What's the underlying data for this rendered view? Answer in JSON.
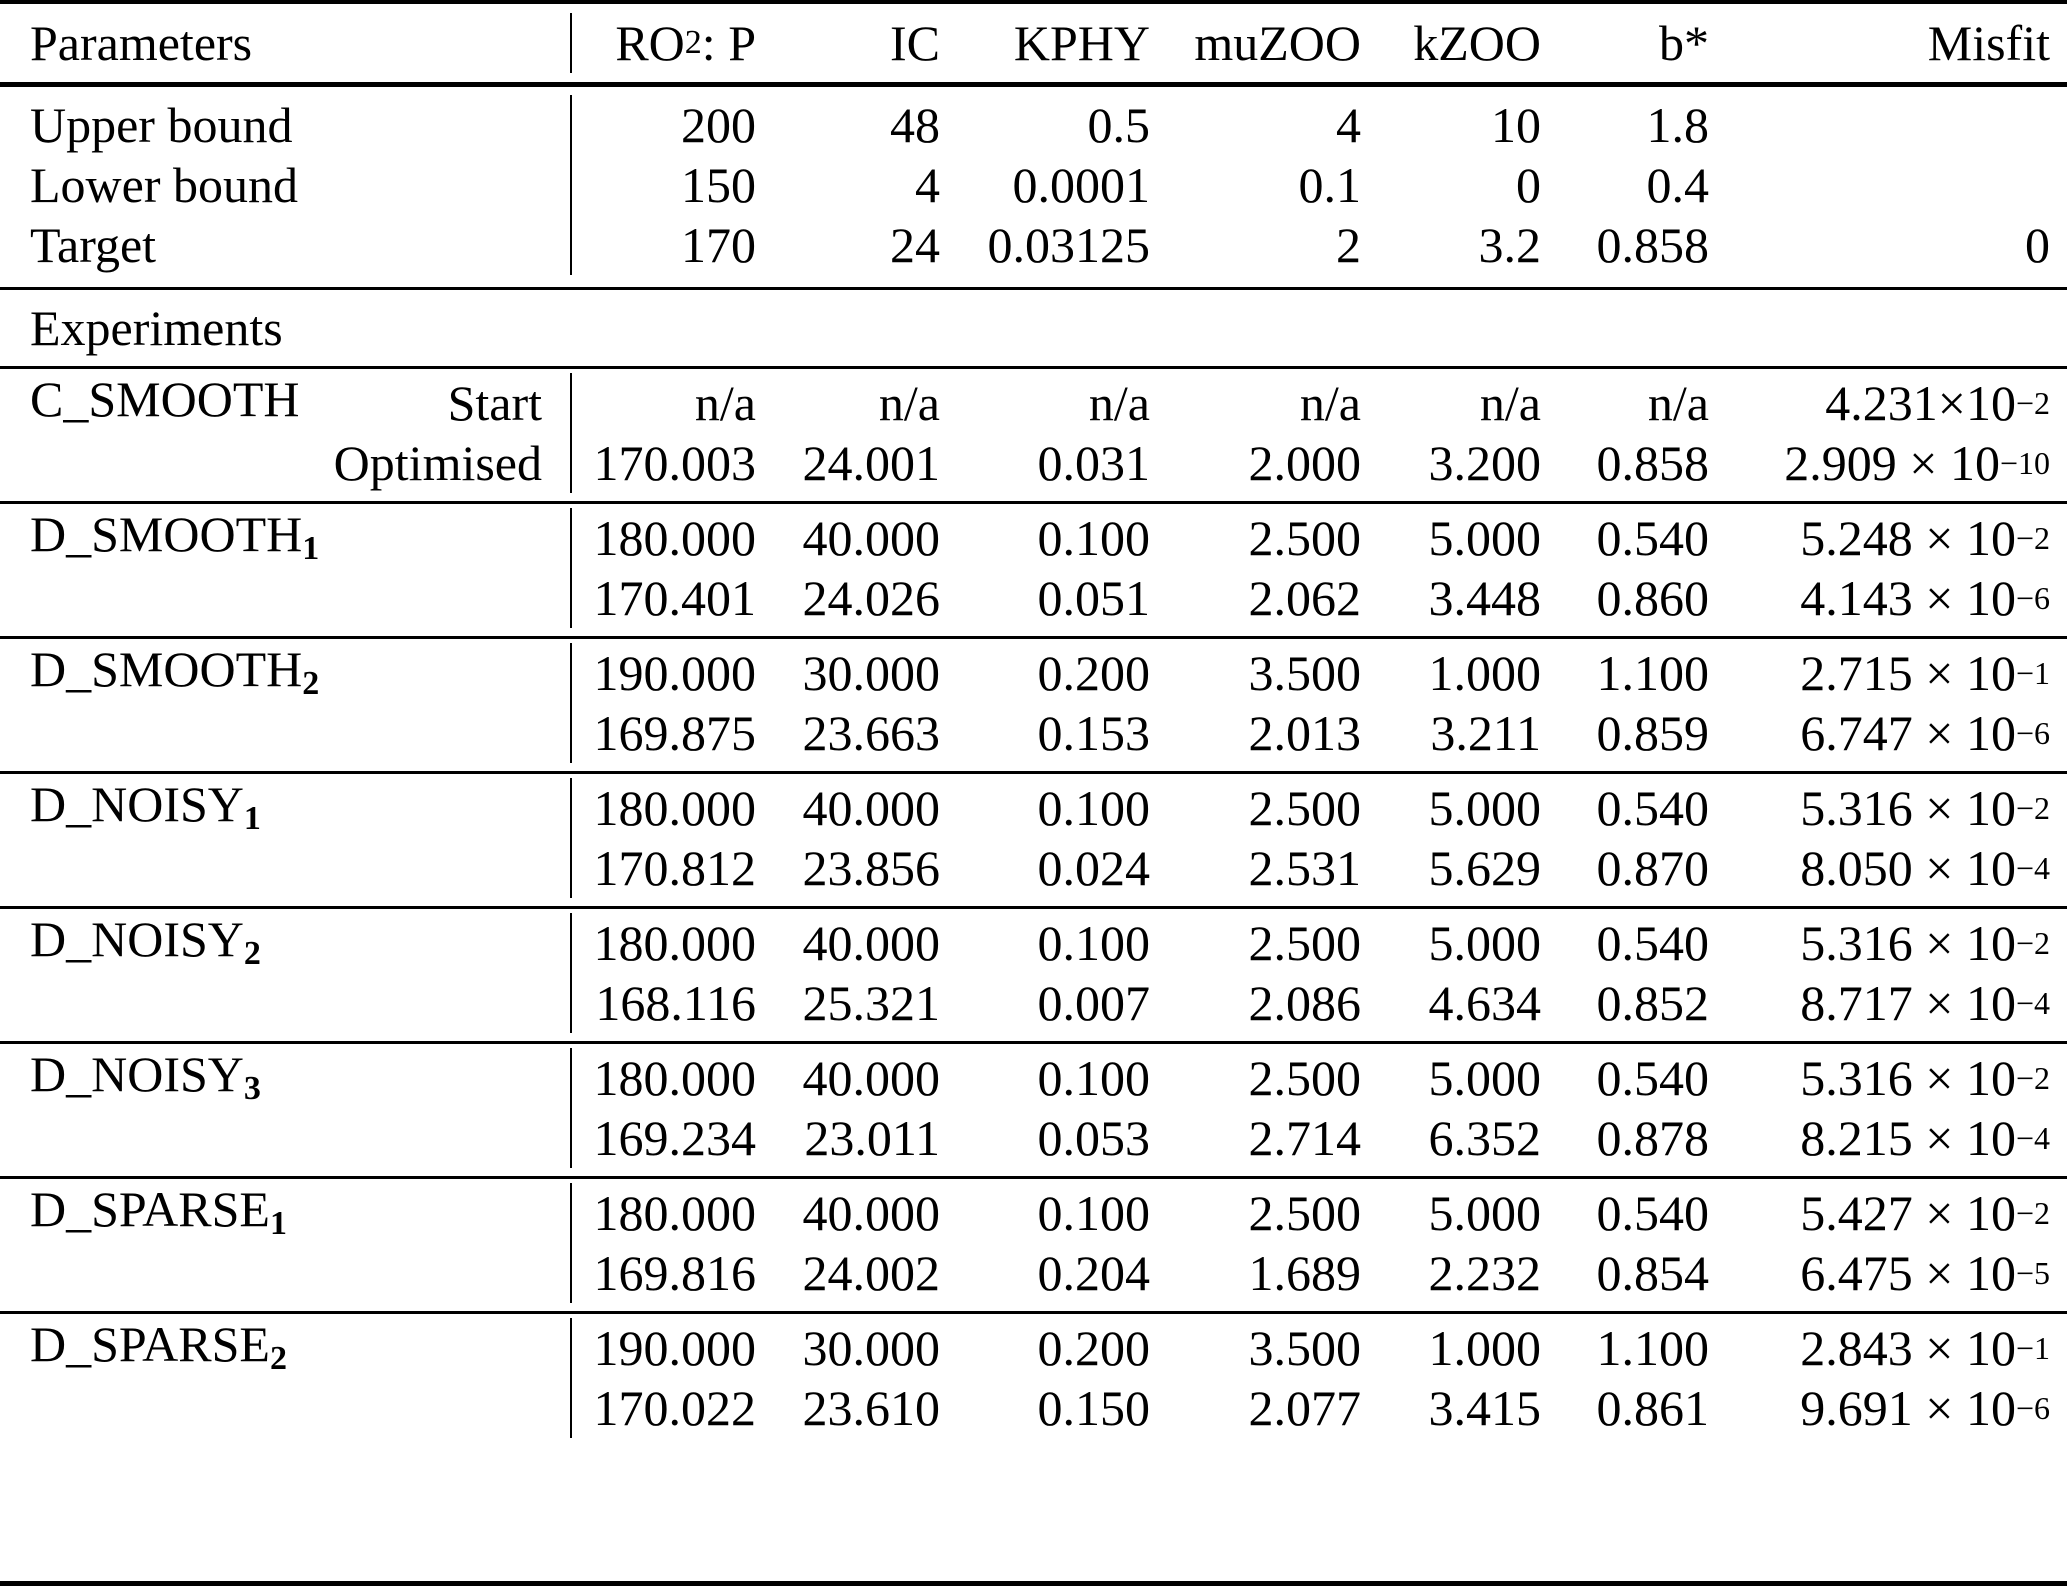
{
  "header": {
    "parameters_label": "Parameters",
    "ro2p": {
      "pre": "RO",
      "sub": "2",
      "post": " : P"
    },
    "cols": [
      "IC",
      "KPHY",
      "muZOO",
      "kZOO",
      "b*",
      "Misfit"
    ]
  },
  "bounds": {
    "rows": [
      {
        "label": "Upper bound",
        "values": [
          "200",
          "48",
          "0.5",
          "4",
          "10",
          "1.8"
        ],
        "misfit": ""
      },
      {
        "label": "Lower bound",
        "values": [
          "150",
          "4",
          "0.0001",
          "0.1",
          "0",
          "0.4"
        ],
        "misfit": ""
      },
      {
        "label": "Target",
        "values": [
          "170",
          "24",
          "0.03125",
          "2",
          "3.2",
          "0.858"
        ],
        "misfit": "0"
      }
    ]
  },
  "experiments_label": "Experiments",
  "experiments": [
    {
      "name": "C_SMOOTH",
      "sub": "",
      "row_labels": [
        "Start",
        "Optimised"
      ],
      "rows": [
        {
          "values": [
            "n/a",
            "n/a",
            "n/a",
            "n/a",
            "n/a",
            "n/a"
          ],
          "misfit_base": "4.231×10",
          "misfit_exp": "−2"
        },
        {
          "values": [
            "170.003",
            "24.001",
            "0.031",
            "2.000",
            "3.200",
            "0.858"
          ],
          "misfit_base": "2.909 × 10",
          "misfit_exp": "−10"
        }
      ]
    },
    {
      "name": "D_SMOOTH",
      "sub": "1",
      "rows": [
        {
          "values": [
            "180.000",
            "40.000",
            "0.100",
            "2.500",
            "5.000",
            "0.540"
          ],
          "misfit_base": "5.248 × 10",
          "misfit_exp": "−2"
        },
        {
          "values": [
            "170.401",
            "24.026",
            "0.051",
            "2.062",
            "3.448",
            "0.860"
          ],
          "misfit_base": "4.143 × 10",
          "misfit_exp": "−6"
        }
      ]
    },
    {
      "name": "D_SMOOTH",
      "sub": "2",
      "rows": [
        {
          "values": [
            "190.000",
            "30.000",
            "0.200",
            "3.500",
            "1.000",
            "1.100"
          ],
          "misfit_base": "2.715 × 10",
          "misfit_exp": "−1"
        },
        {
          "values": [
            "169.875",
            "23.663",
            "0.153",
            "2.013",
            "3.211",
            "0.859"
          ],
          "misfit_base": "6.747 × 10",
          "misfit_exp": "−6"
        }
      ]
    },
    {
      "name": "D_NOISY",
      "sub": "1",
      "rows": [
        {
          "values": [
            "180.000",
            "40.000",
            "0.100",
            "2.500",
            "5.000",
            "0.540"
          ],
          "misfit_base": "5.316 × 10",
          "misfit_exp": "−2"
        },
        {
          "values": [
            "170.812",
            "23.856",
            "0.024",
            "2.531",
            "5.629",
            "0.870"
          ],
          "misfit_base": "8.050 × 10",
          "misfit_exp": "−4"
        }
      ]
    },
    {
      "name": "D_NOISY",
      "sub": "2",
      "rows": [
        {
          "values": [
            "180.000",
            "40.000",
            "0.100",
            "2.500",
            "5.000",
            "0.540"
          ],
          "misfit_base": "5.316 × 10",
          "misfit_exp": "−2"
        },
        {
          "values": [
            "168.116",
            "25.321",
            "0.007",
            "2.086",
            "4.634",
            "0.852"
          ],
          "misfit_base": "8.717 × 10",
          "misfit_exp": "−4"
        }
      ]
    },
    {
      "name": "D_NOISY",
      "sub": "3",
      "rows": [
        {
          "values": [
            "180.000",
            "40.000",
            "0.100",
            "2.500",
            "5.000",
            "0.540"
          ],
          "misfit_base": "5.316 × 10",
          "misfit_exp": "−2"
        },
        {
          "values": [
            "169.234",
            "23.011",
            "0.053",
            "2.714",
            "6.352",
            "0.878"
          ],
          "misfit_base": "8.215 × 10",
          "misfit_exp": "−4"
        }
      ]
    },
    {
      "name": "D_SPARSE",
      "sub": "1",
      "rows": [
        {
          "values": [
            "180.000",
            "40.000",
            "0.100",
            "2.500",
            "5.000",
            "0.540"
          ],
          "misfit_base": "5.427 × 10",
          "misfit_exp": "−2"
        },
        {
          "values": [
            "169.816",
            "24.002",
            "0.204",
            "1.689",
            "2.232",
            "0.854"
          ],
          "misfit_base": "6.475 × 10",
          "misfit_exp": "−5"
        }
      ]
    },
    {
      "name": "D_SPARSE",
      "sub": "2",
      "rows": [
        {
          "values": [
            "190.000",
            "30.000",
            "0.200",
            "3.500",
            "1.000",
            "1.100"
          ],
          "misfit_base": "2.843 × 10",
          "misfit_exp": "−1"
        },
        {
          "values": [
            "170.022",
            "23.610",
            "0.150",
            "2.077",
            "3.415",
            "0.861"
          ],
          "misfit_base": "9.691 × 10",
          "misfit_exp": "−6"
        }
      ]
    }
  ]
}
